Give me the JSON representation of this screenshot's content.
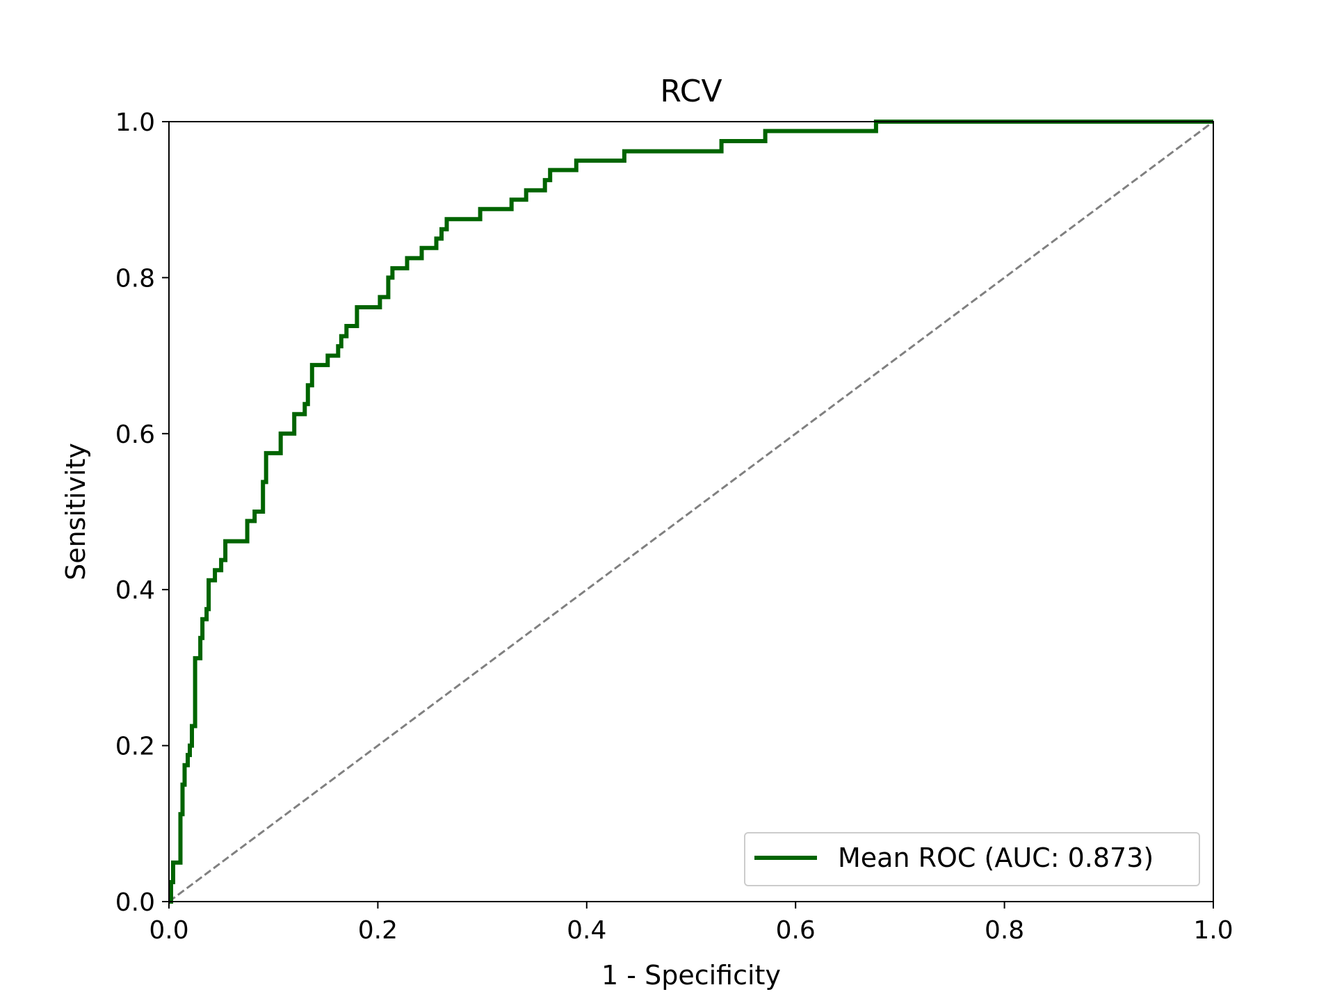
{
  "chart_data": {
    "type": "line",
    "title": "RCV",
    "xlabel": "1 - Specificity",
    "ylabel": "Sensitivity",
    "xlim": [
      0,
      1
    ],
    "ylim": [
      0,
      1
    ],
    "xticks": [
      "0.0",
      "0.2",
      "0.4",
      "0.6",
      "0.8",
      "1.0"
    ],
    "yticks": [
      "0.0",
      "0.2",
      "0.4",
      "0.6",
      "0.8",
      "1.0"
    ],
    "grid": false,
    "legend_position": "bottom-right",
    "series": [
      {
        "name": "Mean ROC (AUC: 0.873)",
        "color": "#006400",
        "style": "step",
        "points": [
          [
            0.0,
            0.0
          ],
          [
            0.002,
            0.0
          ],
          [
            0.002,
            0.025
          ],
          [
            0.004,
            0.025
          ],
          [
            0.004,
            0.05
          ],
          [
            0.011,
            0.05
          ],
          [
            0.011,
            0.112
          ],
          [
            0.013,
            0.112
          ],
          [
            0.013,
            0.15
          ],
          [
            0.015,
            0.15
          ],
          [
            0.015,
            0.175
          ],
          [
            0.018,
            0.175
          ],
          [
            0.018,
            0.188
          ],
          [
            0.02,
            0.188
          ],
          [
            0.02,
            0.2
          ],
          [
            0.022,
            0.2
          ],
          [
            0.022,
            0.225
          ],
          [
            0.025,
            0.225
          ],
          [
            0.025,
            0.312
          ],
          [
            0.03,
            0.312
          ],
          [
            0.03,
            0.338
          ],
          [
            0.032,
            0.338
          ],
          [
            0.032,
            0.362
          ],
          [
            0.036,
            0.362
          ],
          [
            0.036,
            0.375
          ],
          [
            0.038,
            0.375
          ],
          [
            0.038,
            0.412
          ],
          [
            0.044,
            0.412
          ],
          [
            0.044,
            0.425
          ],
          [
            0.05,
            0.425
          ],
          [
            0.05,
            0.438
          ],
          [
            0.054,
            0.438
          ],
          [
            0.054,
            0.462
          ],
          [
            0.075,
            0.462
          ],
          [
            0.075,
            0.488
          ],
          [
            0.082,
            0.488
          ],
          [
            0.082,
            0.5
          ],
          [
            0.09,
            0.5
          ],
          [
            0.09,
            0.538
          ],
          [
            0.093,
            0.538
          ],
          [
            0.093,
            0.575
          ],
          [
            0.107,
            0.575
          ],
          [
            0.107,
            0.6
          ],
          [
            0.12,
            0.6
          ],
          [
            0.12,
            0.625
          ],
          [
            0.13,
            0.625
          ],
          [
            0.13,
            0.638
          ],
          [
            0.133,
            0.638
          ],
          [
            0.133,
            0.662
          ],
          [
            0.137,
            0.662
          ],
          [
            0.137,
            0.688
          ],
          [
            0.152,
            0.688
          ],
          [
            0.152,
            0.7
          ],
          [
            0.162,
            0.7
          ],
          [
            0.162,
            0.712
          ],
          [
            0.165,
            0.712
          ],
          [
            0.165,
            0.725
          ],
          [
            0.17,
            0.725
          ],
          [
            0.17,
            0.738
          ],
          [
            0.18,
            0.738
          ],
          [
            0.18,
            0.762
          ],
          [
            0.202,
            0.762
          ],
          [
            0.202,
            0.775
          ],
          [
            0.21,
            0.775
          ],
          [
            0.21,
            0.8
          ],
          [
            0.214,
            0.8
          ],
          [
            0.214,
            0.812
          ],
          [
            0.228,
            0.812
          ],
          [
            0.228,
            0.825
          ],
          [
            0.242,
            0.825
          ],
          [
            0.242,
            0.838
          ],
          [
            0.256,
            0.838
          ],
          [
            0.256,
            0.85
          ],
          [
            0.261,
            0.85
          ],
          [
            0.261,
            0.862
          ],
          [
            0.266,
            0.862
          ],
          [
            0.266,
            0.875
          ],
          [
            0.298,
            0.875
          ],
          [
            0.298,
            0.888
          ],
          [
            0.328,
            0.888
          ],
          [
            0.328,
            0.9
          ],
          [
            0.342,
            0.9
          ],
          [
            0.342,
            0.912
          ],
          [
            0.36,
            0.912
          ],
          [
            0.36,
            0.925
          ],
          [
            0.365,
            0.925
          ],
          [
            0.365,
            0.938
          ],
          [
            0.39,
            0.938
          ],
          [
            0.39,
            0.95
          ],
          [
            0.436,
            0.95
          ],
          [
            0.436,
            0.962
          ],
          [
            0.529,
            0.962
          ],
          [
            0.529,
            0.975
          ],
          [
            0.571,
            0.975
          ],
          [
            0.571,
            0.988
          ],
          [
            0.677,
            0.988
          ],
          [
            0.677,
            1.0
          ],
          [
            1.0,
            1.0
          ]
        ]
      },
      {
        "name": "",
        "color": "#808080",
        "style": "dashed",
        "points": [
          [
            0,
            0
          ],
          [
            1,
            1
          ]
        ]
      }
    ]
  }
}
